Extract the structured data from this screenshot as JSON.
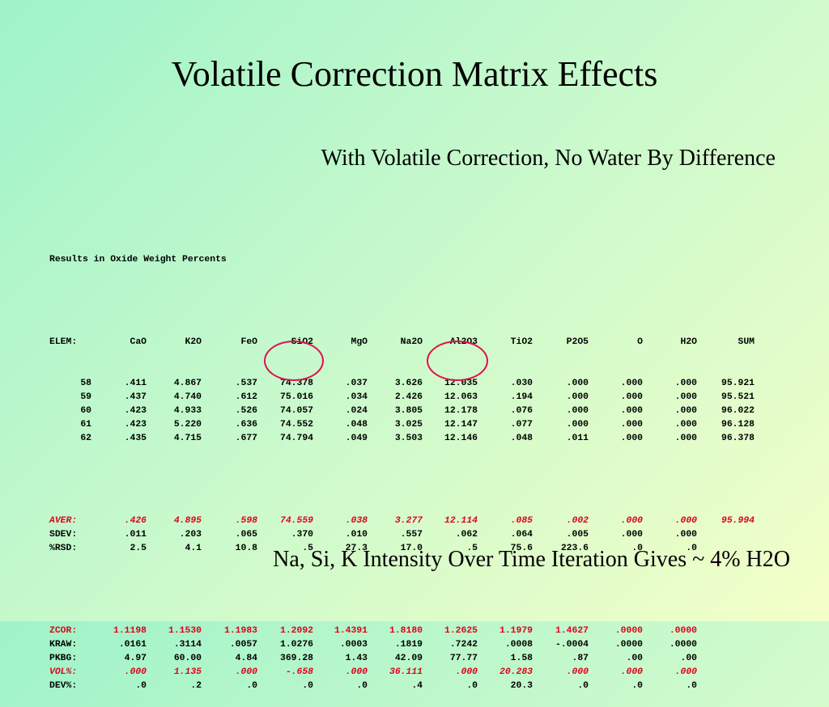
{
  "title": "Volatile Correction Matrix Effects",
  "subtitle": "With Volatile Correction, No Water By Difference",
  "footer": "Na, Si, K Intensity Over Time Iteration Gives ~ 4% H2O",
  "colors": {
    "highlight": "#e0001b",
    "oval": "#e0104f"
  },
  "results": {
    "heading": "Results in Oxide Weight Percents",
    "header_label": "ELEM:",
    "columns": [
      "CaO",
      "K2O",
      "FeO",
      "SiO2",
      "MgO",
      "Na2O",
      "Al2O3",
      "TiO2",
      "P2O5",
      "O",
      "H2O",
      "SUM"
    ],
    "samples": [
      {
        "id": "58",
        "values": [
          ".411",
          "4.867",
          ".537",
          "74.378",
          ".037",
          "3.626",
          "12.035",
          ".030",
          ".000",
          ".000",
          ".000",
          "95.921"
        ]
      },
      {
        "id": "59",
        "values": [
          ".437",
          "4.740",
          ".612",
          "75.016",
          ".034",
          "2.426",
          "12.063",
          ".194",
          ".000",
          ".000",
          ".000",
          "95.521"
        ]
      },
      {
        "id": "60",
        "values": [
          ".423",
          "4.933",
          ".526",
          "74.057",
          ".024",
          "3.805",
          "12.178",
          ".076",
          ".000",
          ".000",
          ".000",
          "96.022"
        ]
      },
      {
        "id": "61",
        "values": [
          ".423",
          "5.220",
          ".636",
          "74.552",
          ".048",
          "3.025",
          "12.147",
          ".077",
          ".000",
          ".000",
          ".000",
          "96.128"
        ]
      },
      {
        "id": "62",
        "values": [
          ".435",
          "4.715",
          ".677",
          "74.794",
          ".049",
          "3.503",
          "12.146",
          ".048",
          ".011",
          ".000",
          ".000",
          "96.378"
        ]
      }
    ],
    "stats": [
      {
        "label": "AVER:",
        "style": "red",
        "values": [
          ".426",
          "4.895",
          ".598",
          "74.559",
          ".038",
          "3.277",
          "12.114",
          ".085",
          ".002",
          ".000",
          ".000",
          "95.994"
        ]
      },
      {
        "label": "SDEV:",
        "style": "",
        "values": [
          ".011",
          ".203",
          ".065",
          ".370",
          ".010",
          ".557",
          ".062",
          ".064",
          ".005",
          ".000",
          ".000",
          ""
        ]
      },
      {
        "label": "%RSD:",
        "style": "",
        "values": [
          "2.5",
          "4.1",
          "10.8",
          ".5",
          "27.3",
          "17.0",
          ".5",
          "75.6",
          "223.6",
          ".0",
          ".0",
          ""
        ]
      }
    ],
    "factors": [
      {
        "label": "ZCOR:",
        "style": "red-plain",
        "values": [
          "1.1198",
          "1.1530",
          "1.1983",
          "1.2092",
          "1.4391",
          "1.8180",
          "1.2625",
          "1.1979",
          "1.4627",
          ".0000",
          ".0000",
          ""
        ]
      },
      {
        "label": "KRAW:",
        "style": "",
        "values": [
          ".0161",
          ".3114",
          ".0057",
          "1.0276",
          ".0003",
          ".1819",
          ".7242",
          ".0008",
          "-.0004",
          ".0000",
          ".0000",
          ""
        ]
      },
      {
        "label": "PKBG:",
        "style": "",
        "values": [
          "4.97",
          "60.00",
          "4.84",
          "369.28",
          "1.43",
          "42.09",
          "77.77",
          "1.58",
          ".87",
          ".00",
          ".00",
          ""
        ]
      },
      {
        "label": "VOL%:",
        "style": "red",
        "values": [
          ".000",
          "1.135",
          ".000",
          "-.658",
          ".000",
          "36.111",
          ".000",
          "20.283",
          ".000",
          ".000",
          ".000",
          ""
        ]
      },
      {
        "label": "DEV%:",
        "style": "",
        "values": [
          ".0",
          ".2",
          ".0",
          ".0",
          ".0",
          ".4",
          ".0",
          "20.3",
          ".0",
          ".0",
          ".0",
          ""
        ]
      }
    ],
    "circled_columns": [
      "SiO2",
      "Al2O3"
    ]
  }
}
